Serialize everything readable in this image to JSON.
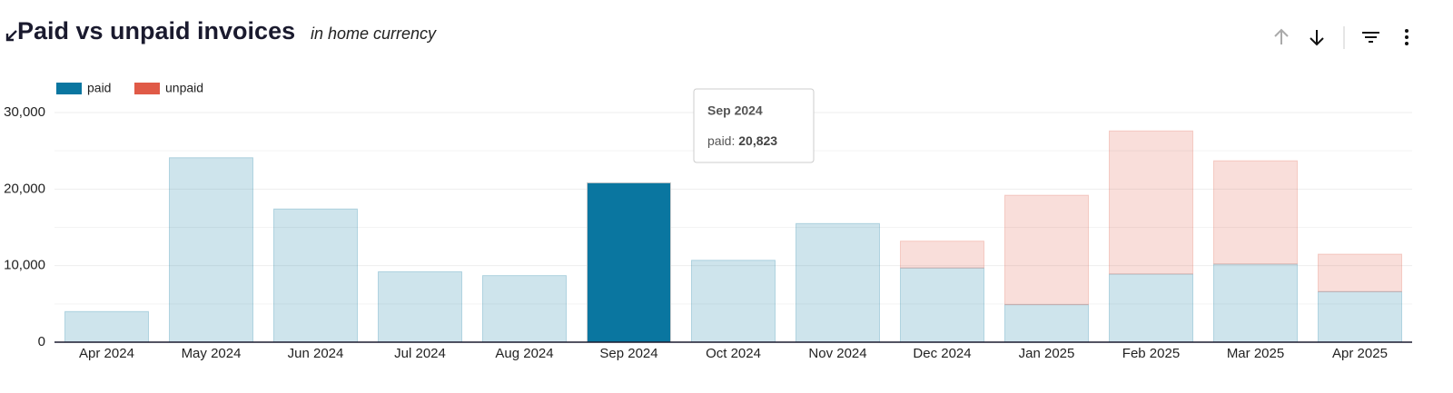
{
  "chart_data": {
    "type": "stacked_bar",
    "title": "Paid vs unpaid invoices",
    "subtitle": "in home currency",
    "categories": [
      "Apr 2024",
      "May 2024",
      "Jun 2024",
      "Jul 2024",
      "Aug 2024",
      "Sep 2024",
      "Oct 2024",
      "Nov 2024",
      "Dec 2024",
      "Jan 2025",
      "Feb 2025",
      "Mar 2025",
      "Apr 2025"
    ],
    "series": [
      {
        "name": "paid",
        "color": "#0a76a0",
        "values": [
          4000,
          24100,
          17400,
          9200,
          8700,
          20823,
          10700,
          15500,
          9700,
          4900,
          8900,
          10200,
          6600
        ]
      },
      {
        "name": "unpaid",
        "color": "#e05a47",
        "values": [
          0,
          0,
          0,
          0,
          0,
          0,
          0,
          0,
          3500,
          14300,
          18700,
          13500,
          4900
        ]
      }
    ],
    "ylim": [
      0,
      30000
    ],
    "yticks": [
      0,
      {
        "value": 10000,
        "label": "10,000"
      },
      {
        "value": 20000,
        "label": "20,000"
      },
      {
        "value": 30000,
        "label": "30,000"
      }
    ],
    "minor_yticks": [
      5000,
      15000,
      25000
    ],
    "grid": true,
    "legend": "top-left",
    "highlight_category": "Sep 2024",
    "tooltip": {
      "title": "Sep 2024",
      "label": "paid:",
      "value": "20,823"
    }
  }
}
